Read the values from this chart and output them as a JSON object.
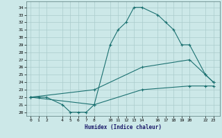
{
  "xlabel": "Humidex (Indice chaleur)",
  "bg_color": "#cce8e8",
  "grid_color": "#aacccc",
  "line_color": "#1a7070",
  "line1": {
    "x": [
      0,
      1,
      2,
      4,
      5,
      6,
      7,
      8,
      10,
      11,
      12,
      13,
      14,
      16,
      17,
      18,
      19,
      20,
      22,
      23
    ],
    "y": [
      22,
      22,
      22,
      21,
      20,
      20,
      20,
      21,
      29,
      31,
      32,
      34,
      34,
      33,
      32,
      31,
      29,
      29,
      25,
      24
    ]
  },
  "line2": {
    "x": [
      0,
      8,
      14,
      20,
      22,
      23
    ],
    "y": [
      22,
      23,
      26,
      27,
      25,
      24
    ]
  },
  "line3": {
    "x": [
      0,
      8,
      14,
      20,
      22,
      23
    ],
    "y": [
      22,
      21,
      23,
      23.5,
      23.5,
      23.5
    ]
  },
  "xlim": [
    -0.5,
    23.8
  ],
  "ylim": [
    19.5,
    34.8
  ],
  "xticks": [
    0,
    1,
    2,
    4,
    5,
    6,
    7,
    8,
    10,
    11,
    12,
    13,
    14,
    16,
    17,
    18,
    19,
    20,
    22,
    23
  ],
  "yticks": [
    20,
    21,
    22,
    23,
    24,
    25,
    26,
    27,
    28,
    29,
    30,
    31,
    32,
    33,
    34
  ],
  "marker": "+"
}
